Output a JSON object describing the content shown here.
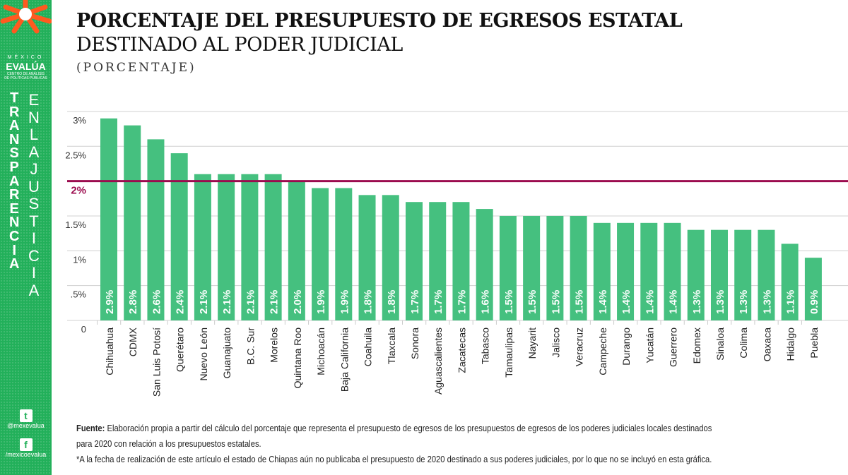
{
  "sidebar": {
    "brand_top": "MÉXICO",
    "brand_name": "EVALÚA",
    "brand_sub1": "CENTRO DE ANÁLISIS",
    "brand_sub2": "DE POLÍTICAS PÚBLICAS",
    "vertical_left": "TRANSPARENCIA",
    "vertical_right": "ENLAJUSTICIA",
    "twitter": "@mexevalua",
    "facebook": "/mexicoevalua",
    "brand_color": "#22b05a"
  },
  "chart_data": {
    "type": "bar",
    "title": "PORCENTAJE DEL PRESUPUESTO DE EGRESOS ESTATAL",
    "subtitle": "DESTINADO AL PODER JUDICIAL",
    "unit_label": "(PORCENTAJE)",
    "categories": [
      "Chihuahua",
      "CDMX",
      "San Luis Potosí",
      "Querétaro",
      "Nuevo León",
      "Guanajuato",
      "B.C. Sur",
      "Morelos",
      "Quintana Roo",
      "Michoacán",
      "Baja California",
      "Coahuila",
      "Tlaxcala",
      "Sonora",
      "Aguascalientes",
      "Zacatecas",
      "Tabasco",
      "Tamaulipas",
      "Nayarit",
      "Jalisco",
      "Veracruz",
      "Campeche",
      "Durango",
      "Yucatán",
      "Guerrero",
      "Edomex",
      "Sinaloa",
      "Colima",
      "Oaxaca",
      "Hidalgo",
      "Puebla"
    ],
    "values": [
      2.9,
      2.8,
      2.6,
      2.4,
      2.1,
      2.1,
      2.1,
      2.1,
      2.0,
      1.9,
      1.9,
      1.8,
      1.8,
      1.7,
      1.7,
      1.7,
      1.6,
      1.5,
      1.5,
      1.5,
      1.5,
      1.4,
      1.4,
      1.4,
      1.4,
      1.3,
      1.3,
      1.3,
      1.3,
      1.1,
      0.9
    ],
    "data_labels": [
      "2.9%",
      "2.8%",
      "2.6%",
      "2.4%",
      "2.1%",
      "2.1%",
      "2.1%",
      "2.1%",
      "2.0%",
      "1.9%",
      "1.9%",
      "1.8%",
      "1.8%",
      "1.7%",
      "1.7%",
      "1.7%",
      "1.6%",
      "1.5%",
      "1.5%",
      "1.5%",
      "1.5%",
      "1.4%",
      "1.4%",
      "1.4%",
      "1.4%",
      "1.3%",
      "1.3%",
      "1.3%",
      "1.3%",
      "1.1%",
      "0.9%"
    ],
    "yticks": [
      0,
      0.5,
      1,
      1.5,
      2.5,
      3
    ],
    "ytick_labels": [
      "0",
      ".5%",
      "1%",
      "1.5%",
      "2.5%",
      "3%"
    ],
    "ylim": [
      0,
      3
    ],
    "reference_line": {
      "value": 2,
      "label": "2%",
      "color": "#9b0b4e"
    },
    "bar_color": "#45c07f",
    "grid": true
  },
  "footer": {
    "source_label": "Fuente:",
    "source_text": "Elaboración propia a partir del cálculo del porcentaje que representa el presupuesto de egresos de los presupuestos de egresos de los poderes judiciales locales destinados",
    "source_text2": "para 2020 con relación a los presupuestos estatales.",
    "note": "*A la fecha de realización de este artículo el estado de Chiapas aún no publicaba el presupuesto de 2020 destinado a sus poderes judiciales, por lo que no se incluyó en esta gráfica."
  }
}
